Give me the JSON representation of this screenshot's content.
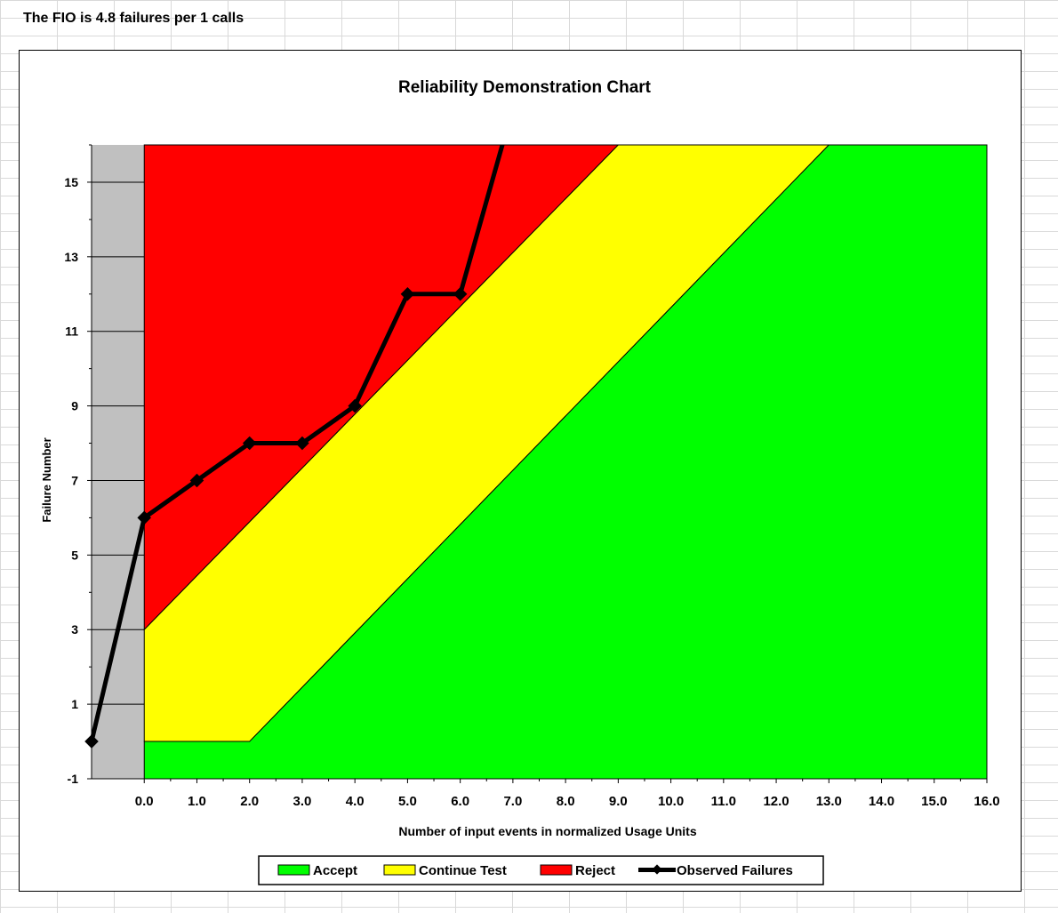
{
  "header": {
    "fio_text": "The FIO is 4.8 failures per 1 calls"
  },
  "colors": {
    "reject": "#ff0000",
    "continue": "#ffff00",
    "accept": "#00ff00",
    "negative_zone": "#c0c0c0",
    "observed": "#000000"
  },
  "chart_data": {
    "type": "line",
    "title": "Reliability Demonstration Chart",
    "xlabel": "Number of input events in normalized Usage Units",
    "ylabel": "Failure Number",
    "xlim": [
      -1,
      16
    ],
    "ylim": [
      -1,
      16
    ],
    "x_ticks": [
      "0.0",
      "1.0",
      "2.0",
      "3.0",
      "4.0",
      "5.0",
      "6.0",
      "7.0",
      "8.0",
      "9.0",
      "10.0",
      "11.0",
      "12.0",
      "13.0",
      "14.0",
      "15.0",
      "16.0"
    ],
    "x_tick_values": [
      0,
      1,
      2,
      3,
      4,
      5,
      6,
      7,
      8,
      9,
      10,
      11,
      12,
      13,
      14,
      15,
      16
    ],
    "y_ticks": [
      "-1",
      "1",
      "3",
      "5",
      "7",
      "9",
      "11",
      "13",
      "15"
    ],
    "y_tick_values": [
      -1,
      1,
      3,
      5,
      7,
      9,
      11,
      13,
      15
    ],
    "regions": {
      "reject_boundary": [
        [
          0,
          3
        ],
        [
          9,
          16
        ]
      ],
      "accept_boundary": [
        [
          0,
          0
        ],
        [
          2,
          0
        ],
        [
          13,
          16
        ]
      ]
    },
    "series": [
      {
        "name": "Observed Failures",
        "x": [
          -1,
          0,
          1,
          2,
          3,
          4,
          5,
          6,
          6.8
        ],
        "y": [
          0,
          6,
          7,
          8,
          8,
          9,
          12,
          12,
          16
        ]
      }
    ],
    "legend": {
      "position": "bottom",
      "entries": [
        "Accept",
        "Continue Test",
        "Reject",
        "Observed Failures"
      ]
    }
  }
}
